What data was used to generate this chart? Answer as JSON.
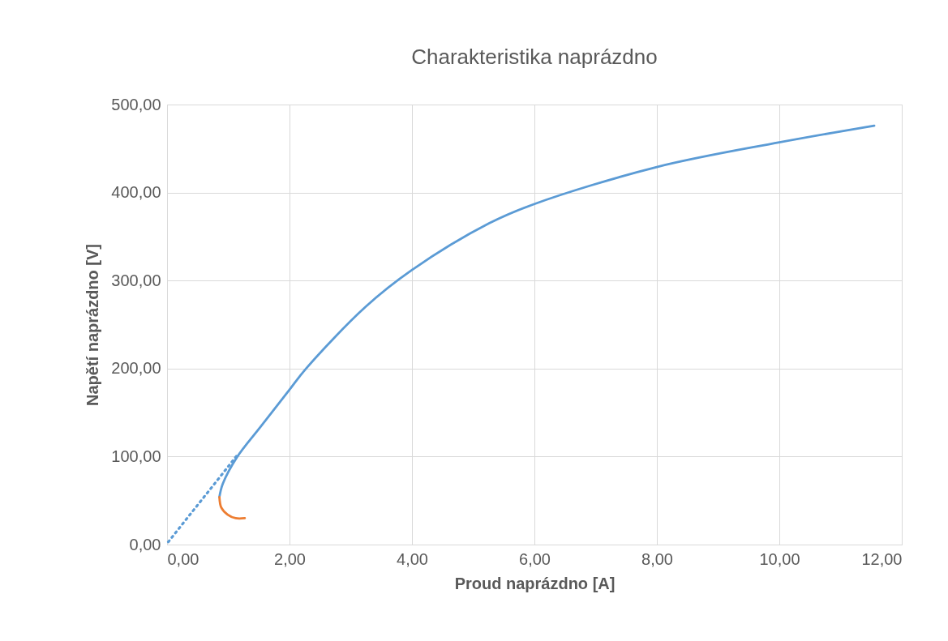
{
  "chart_data": {
    "type": "line",
    "title": "Charakteristika naprázdno",
    "xlabel": "Proud naprázdno [A]",
    "ylabel": "Napětí naprázdno [V]",
    "xlim": [
      0,
      12
    ],
    "ylim": [
      0,
      500
    ],
    "xticks": [
      {
        "value": 0,
        "label": "0,00"
      },
      {
        "value": 2,
        "label": "2,00"
      },
      {
        "value": 4,
        "label": "4,00"
      },
      {
        "value": 6,
        "label": "6,00"
      },
      {
        "value": 8,
        "label": "8,00"
      },
      {
        "value": 10,
        "label": "10,00"
      },
      {
        "value": 12,
        "label": "12,00"
      }
    ],
    "yticks": [
      {
        "value": 0,
        "label": "0,00"
      },
      {
        "value": 100,
        "label": "100,00"
      },
      {
        "value": 200,
        "label": "200,00"
      },
      {
        "value": 300,
        "label": "300,00"
      },
      {
        "value": 400,
        "label": "400,00"
      },
      {
        "value": 500,
        "label": "500,00"
      }
    ],
    "grid": true,
    "marker": "none",
    "series": [
      {
        "color": "#5b9bd5",
        "line_style": "solid",
        "x": [
          0.855,
          0.91,
          1.14,
          1.53,
          2.0,
          2.27,
          3.24,
          4.0,
          5.26,
          6.0,
          8.0,
          10.0,
          11.55
        ],
        "values": [
          54,
          69,
          99,
          134,
          176,
          200,
          270,
          312,
          365,
          387,
          429,
          457,
          476
        ]
      },
      {
        "color": "#ed7d31",
        "line_style": "solid",
        "x": [
          0.855,
          0.886,
          0.99,
          1.12,
          1.27
        ],
        "values": [
          54,
          42,
          34,
          30,
          30
        ]
      },
      {
        "color": "#5b9bd5",
        "line_style": "dotted",
        "x": [
          0.02,
          1.14
        ],
        "values": [
          3,
          101
        ]
      }
    ]
  }
}
